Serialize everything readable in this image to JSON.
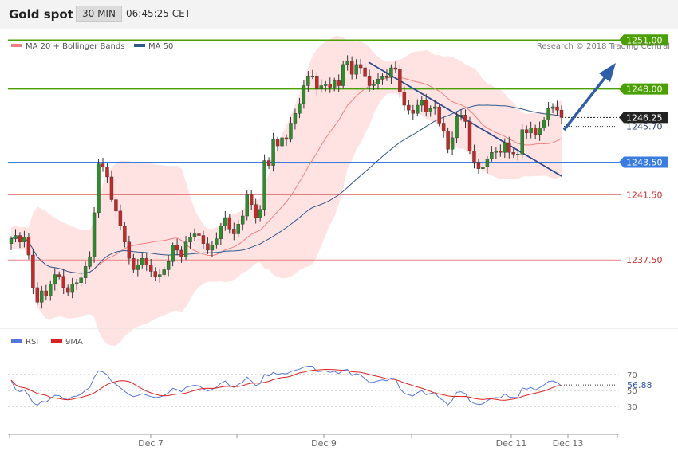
{
  "header": {
    "title": "Gold spot",
    "timeframe": "30 MIN",
    "time": "06:45:25 CET"
  },
  "legend": {
    "ma20_bb": {
      "label": "MA 20 + Bollinger Bands",
      "color": "#f08080"
    },
    "ma50": {
      "label": "MA 50",
      "color": "#2d5a8e"
    }
  },
  "credit": "Research © 2018 Trading Central",
  "levels": [
    {
      "value": 1251.0,
      "label": "1251.00",
      "kind": "resistance",
      "color": "#4aa000"
    },
    {
      "value": 1248.0,
      "label": "1248.00",
      "kind": "resistance",
      "color": "#4aa000"
    },
    {
      "value": 1246.25,
      "label": "1246.25",
      "kind": "last",
      "color": "#222222"
    },
    {
      "value": 1245.7,
      "label": "1245.70",
      "kind": "pivot",
      "color": "#3366cc"
    },
    {
      "value": 1243.5,
      "label": "1243.50",
      "kind": "pivot-line",
      "color": "#3a7be0"
    },
    {
      "value": 1241.5,
      "label": "1241.50",
      "kind": "support",
      "color": "#e05050"
    },
    {
      "value": 1237.5,
      "label": "1237.50",
      "kind": "support",
      "color": "#e05050"
    }
  ],
  "rsi_panel": {
    "legend": [
      {
        "label": "RSI",
        "color": "#5577dd"
      },
      {
        "label": "9MA",
        "color": "#dd2222"
      }
    ],
    "ticks": [
      "70",
      "50",
      "30"
    ],
    "last_value": "56.88"
  },
  "xaxis": {
    "ticks": [
      "Dec 7",
      "Dec 9",
      "Dec 11",
      "Dec 13"
    ]
  },
  "chart_data": {
    "type": "candlestick",
    "ylim": [
      1233.4,
      1251.6
    ],
    "closes": [
      1238.8,
      1239.0,
      1238.6,
      1238.9,
      1237.8,
      1235.8,
      1234.9,
      1235.6,
      1235.3,
      1236.0,
      1236.6,
      1236.5,
      1235.8,
      1235.5,
      1236.0,
      1236.1,
      1236.4,
      1237.1,
      1237.7,
      1240.4,
      1243.4,
      1243.2,
      1242.6,
      1241.2,
      1240.5,
      1239.6,
      1238.6,
      1237.6,
      1236.9,
      1237.2,
      1237.6,
      1237.2,
      1236.8,
      1236.5,
      1236.6,
      1236.9,
      1237.4,
      1238.4,
      1238.1,
      1237.7,
      1238.6,
      1238.9,
      1239.1,
      1239.0,
      1238.5,
      1238.1,
      1238.4,
      1238.8,
      1239.6,
      1240.1,
      1239.4,
      1239.1,
      1239.7,
      1240.2,
      1241.5,
      1240.9,
      1240.1,
      1240.6,
      1243.6,
      1243.3,
      1244.9,
      1244.5,
      1245.0,
      1244.9,
      1245.9,
      1246.5,
      1247.1,
      1248.2,
      1248.8,
      1248.8,
      1248.0,
      1248.2,
      1248.3,
      1248.1,
      1248.5,
      1248.2,
      1249.5,
      1249.7,
      1248.9,
      1249.5,
      1249.3,
      1248.8,
      1248.2,
      1248.3,
      1248.6,
      1248.8,
      1248.7,
      1249.3,
      1249.2,
      1247.8,
      1247.0,
      1246.7,
      1246.5,
      1247.0,
      1247.3,
      1246.6,
      1246.8,
      1246.9,
      1245.9,
      1245.4,
      1244.3,
      1245.0,
      1246.3,
      1246.4,
      1246.0,
      1244.2,
      1243.5,
      1243.1,
      1243.2,
      1243.7,
      1244.1,
      1244.2,
      1244.1,
      1244.7,
      1244.1,
      1244.0,
      1244.0,
      1245.5,
      1245.3,
      1245.6,
      1245.2,
      1245.6,
      1246.1,
      1246.8,
      1246.9,
      1246.7,
      1246.25
    ]
  }
}
